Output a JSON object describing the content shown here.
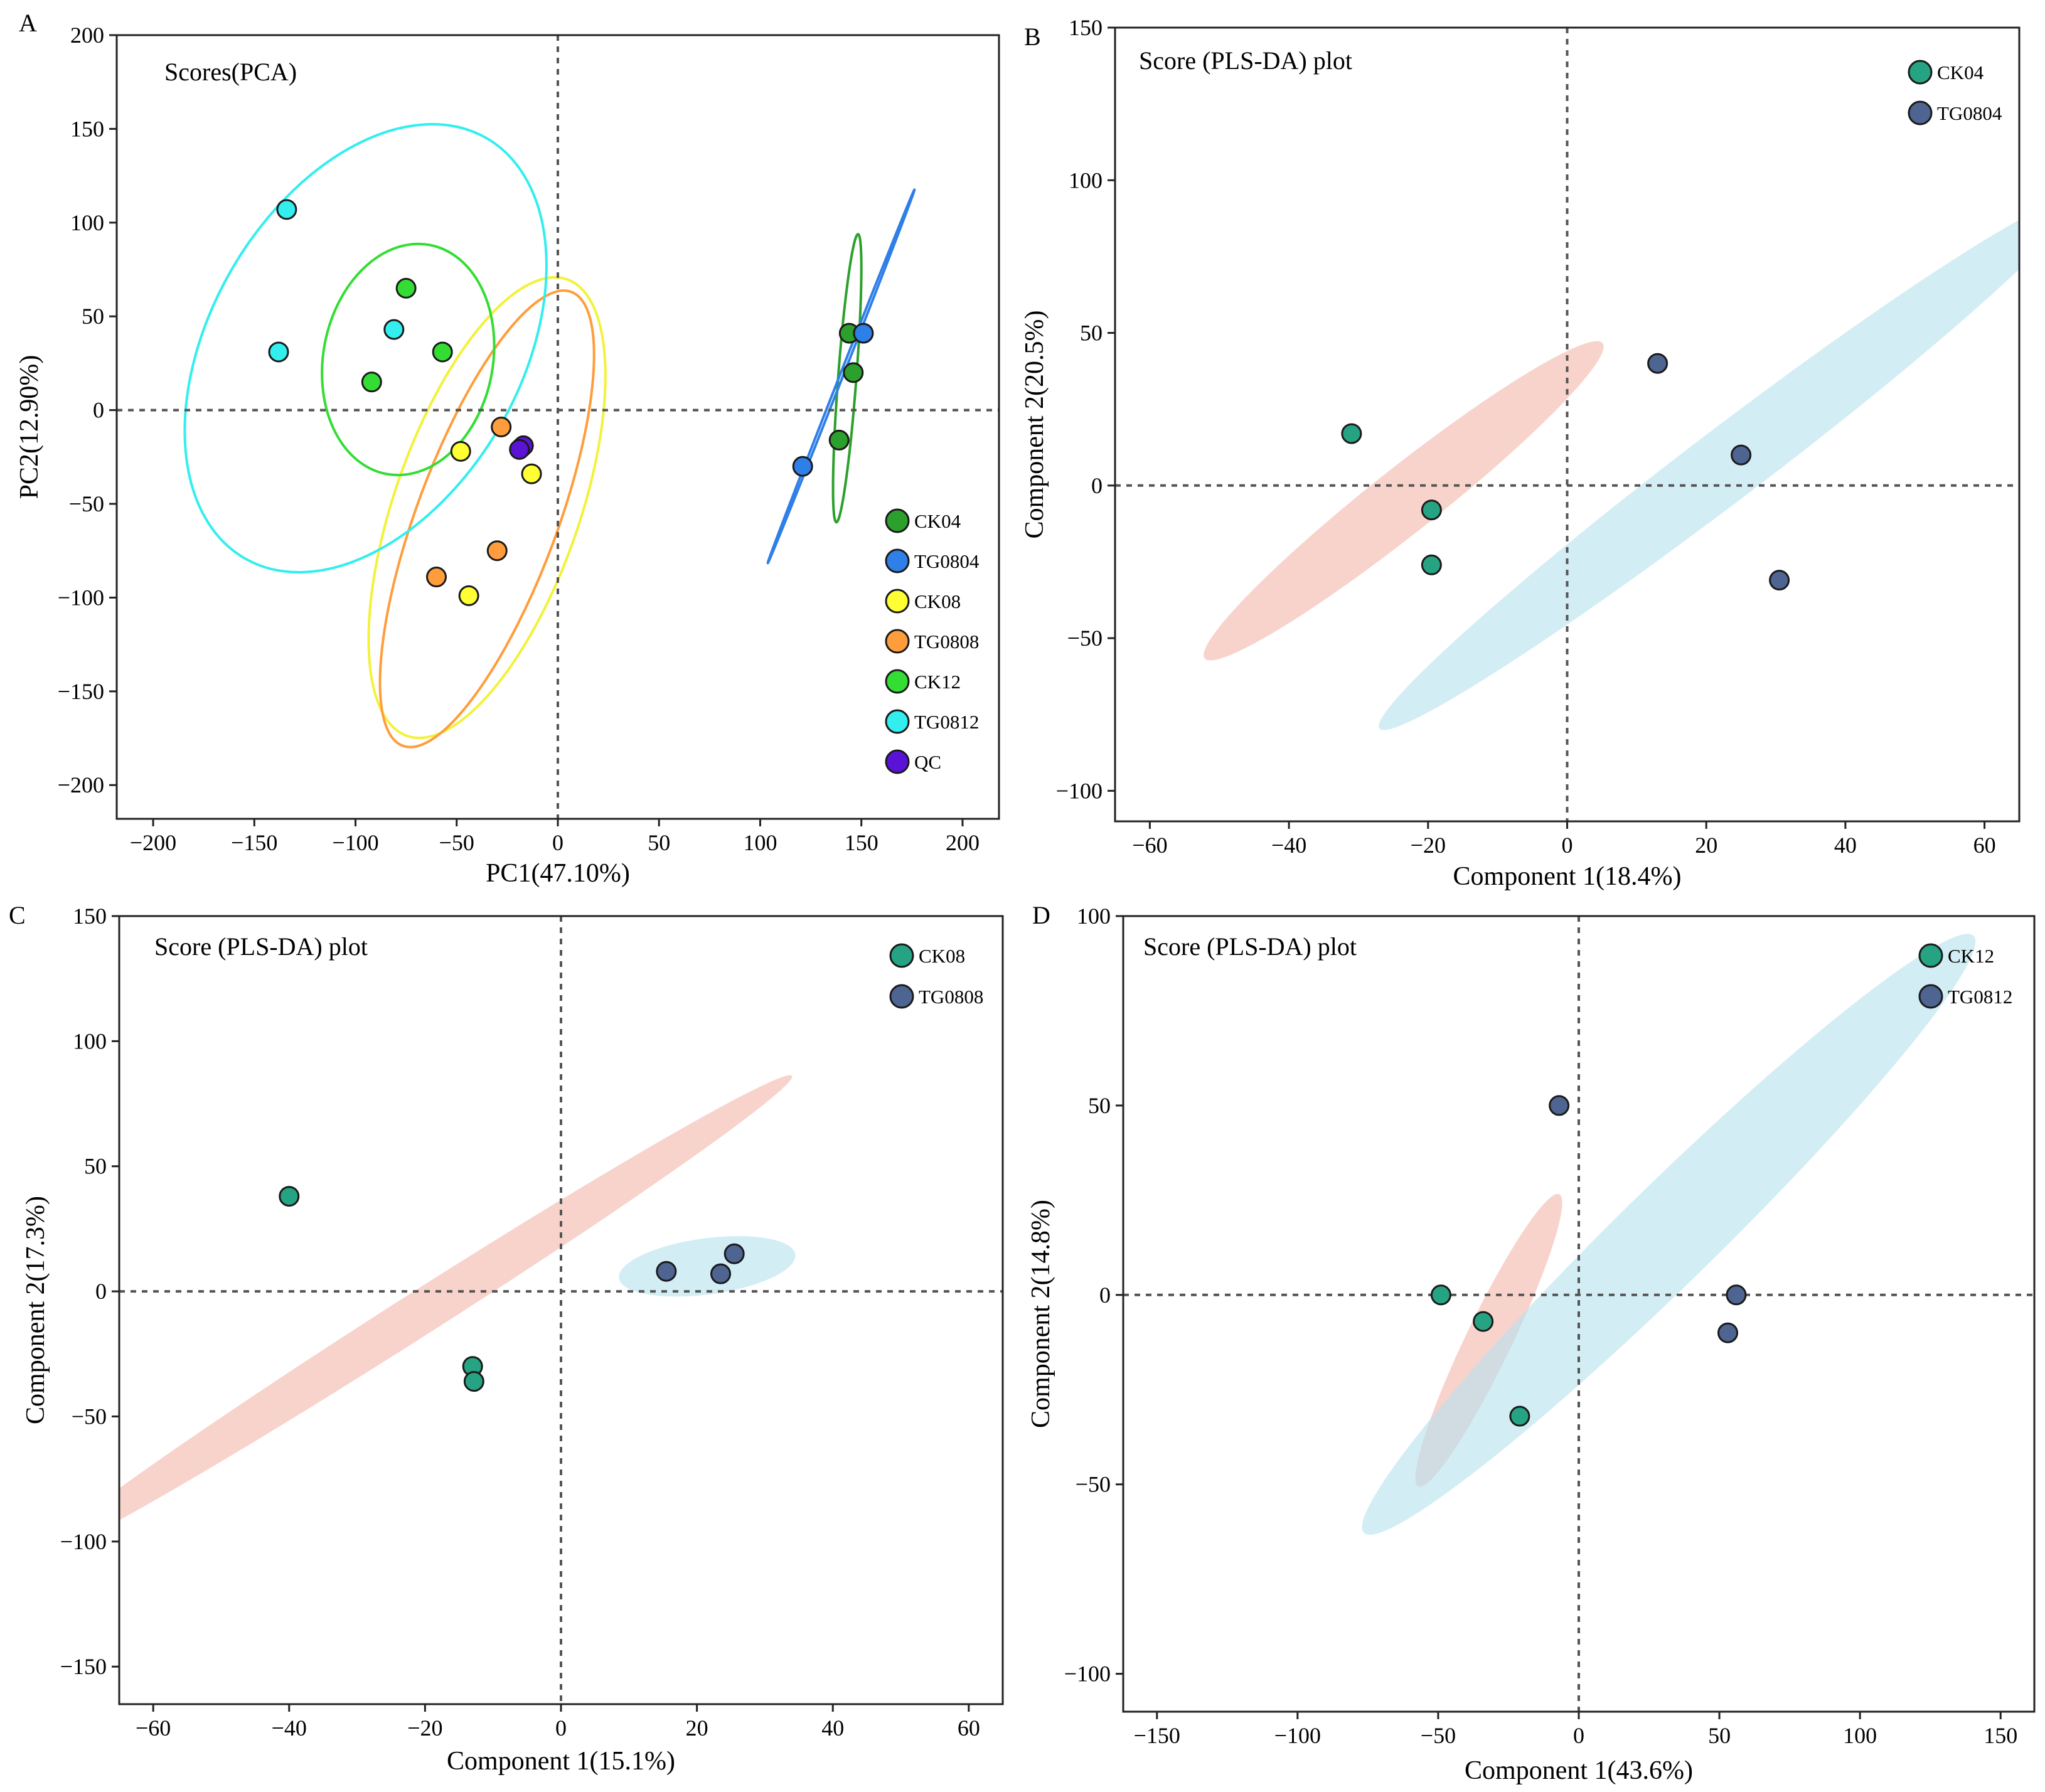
{
  "chart_data": [
    {
      "panel": "A",
      "type": "scatter",
      "title": "Scores(PCA)",
      "xlabel": "PC1(47.10%)",
      "ylabel": "PC2(12.90%)",
      "xlim": [
        -218,
        218
      ],
      "ylim": [
        -218,
        200
      ],
      "xticks": [
        -200,
        -150,
        -100,
        -50,
        0,
        50,
        100,
        150,
        200
      ],
      "yticks": [
        -200,
        -150,
        -100,
        -50,
        0,
        50,
        100,
        150,
        200
      ],
      "xtick_labels": [
        "−200",
        "−150",
        "−100",
        "−50",
        "0",
        "50",
        "100",
        "150",
        "200"
      ],
      "ytick_labels": [
        "−200",
        "−150",
        "−100",
        "−50",
        "0",
        "50",
        "100",
        "150",
        "200"
      ],
      "legend_position": "bottom-right",
      "series": [
        {
          "name": "CK04",
          "color": "#2ca02c",
          "points": [
            [
              144,
              41
            ],
            [
              146,
              20
            ],
            [
              139,
              -16
            ]
          ],
          "ellipse": {
            "center": [
              143,
              17
            ],
            "rx": 77,
            "ry": 4.5,
            "angle": 86,
            "fill": "none"
          }
        },
        {
          "name": "TG0804",
          "color": "#2f7fe8",
          "points": [
            [
              151,
              41
            ],
            [
              121,
              -30
            ]
          ],
          "ellipse": {
            "center": [
              140,
              18
            ],
            "rx": 106,
            "ry": 0.8,
            "angle": 70,
            "fill": "none"
          }
        },
        {
          "name": "CK08",
          "color": "#ffff33",
          "points": [
            [
              -48,
              -22
            ],
            [
              -13,
              -34
            ],
            [
              -44,
              -99
            ]
          ],
          "ellipse": {
            "center": [
              -35,
              -52
            ],
            "rx": 128,
            "ry": 46,
            "angle": 72,
            "fill": "none"
          }
        },
        {
          "name": "TG0808",
          "color": "#ff9d3c",
          "points": [
            [
              -28,
              -9
            ],
            [
              -30,
              -75
            ],
            [
              -60,
              -89
            ]
          ],
          "ellipse": {
            "center": [
              -35,
              -58
            ],
            "rx": 128,
            "ry": 35,
            "angle": 71,
            "fill": "none"
          }
        },
        {
          "name": "CK12",
          "color": "#33dd33",
          "points": [
            [
              -75,
              65
            ],
            [
              -57,
              31
            ],
            [
              -92,
              15
            ]
          ],
          "ellipse": {
            "center": [
              -74,
              27
            ],
            "rx": 62,
            "ry": 42,
            "angle": 80,
            "fill": "none"
          }
        },
        {
          "name": "TG0812",
          "color": "#33eeee",
          "points": [
            [
              -134,
              107
            ],
            [
              -81,
              43
            ],
            [
              -138,
              31
            ]
          ],
          "ellipse": {
            "center": [
              -95,
              33
            ],
            "rx": 127,
            "ry": 78,
            "angle": 62,
            "fill": "none"
          }
        },
        {
          "name": "QC",
          "color": "#5a13d6",
          "points": [
            [
              -18,
              -20
            ],
            [
              -17,
              -19
            ],
            [
              -19,
              -21
            ]
          ]
        }
      ]
    },
    {
      "panel": "B",
      "type": "scatter",
      "title": "Score (PLS-DA) plot",
      "xlabel": "Component 1(18.4%)",
      "ylabel": "Component 2(20.5%)",
      "xlim": [
        -65,
        65
      ],
      "ylim": [
        -110,
        150
      ],
      "xticks": [
        -60,
        -40,
        -20,
        0,
        20,
        40,
        60
      ],
      "yticks": [
        -100,
        -50,
        0,
        50,
        100,
        150
      ],
      "xtick_labels": [
        "−60",
        "−40",
        "−20",
        "0",
        "20",
        "40",
        "60"
      ],
      "ytick_labels": [
        "−100",
        "−50",
        "0",
        "50",
        "100",
        "150"
      ],
      "legend_position": "top-right",
      "series": [
        {
          "name": "CK04",
          "color": "#26a383",
          "points": [
            [
              -31,
              17
            ],
            [
              -19.5,
              -8
            ],
            [
              -19.5,
              -26
            ]
          ],
          "ellipse": {
            "center": [
              -23.5,
              -5
            ],
            "rx": 59,
            "ry": 5.2,
            "angle": 61,
            "fill": "#f4b8ad"
          }
        },
        {
          "name": "TG0804",
          "color": "#4e6491",
          "points": [
            [
              13,
              40
            ],
            [
              25,
              10
            ],
            [
              30.5,
              -31
            ]
          ],
          "ellipse": {
            "center": [
              23,
              7
            ],
            "rx": 100,
            "ry": 5.8,
            "angle": 60,
            "fill": "#b8e2ee"
          }
        }
      ]
    },
    {
      "panel": "C",
      "type": "scatter",
      "title": "Score (PLS-DA) plot",
      "xlabel": "Component 1(15.1%)",
      "ylabel": "Component 2(17.3%)",
      "xlim": [
        -65,
        65
      ],
      "ylim": [
        -165,
        150
      ],
      "xticks": [
        -60,
        -40,
        -20,
        0,
        20,
        40,
        60
      ],
      "yticks": [
        -150,
        -100,
        -50,
        0,
        50,
        100,
        150
      ],
      "xtick_labels": [
        "−60",
        "−40",
        "−20",
        "0",
        "20",
        "40",
        "60"
      ],
      "ytick_labels": [
        "−150",
        "−100",
        "−50",
        "0",
        "50",
        "100",
        "150"
      ],
      "legend_position": "top-right",
      "series": [
        {
          "name": "CK08",
          "color": "#26a383",
          "points": [
            [
              -40,
              38
            ],
            [
              -13,
              -30
            ],
            [
              -12.8,
              -36
            ]
          ],
          "ellipse": {
            "center": [
              -21.5,
              -10
            ],
            "rx": 111,
            "ry": 3.6,
            "angle": 60,
            "fill": "#f4b8ad"
          }
        },
        {
          "name": "TG0808",
          "color": "#4e6491",
          "points": [
            [
              15.5,
              8
            ],
            [
              23.5,
              7
            ],
            [
              25.5,
              15
            ]
          ],
          "ellipse": {
            "center": [
              21.5,
              10
            ],
            "rx": 13.8,
            "ry": 8.5,
            "angle": 20,
            "fill": "#b8e2ee"
          }
        }
      ]
    },
    {
      "panel": "D",
      "type": "scatter",
      "title": "Score (PLS-DA) plot",
      "xlabel": "Component 1(43.6%)",
      "ylabel": "Component 2(14.8%)",
      "xlim": [
        -162,
        162
      ],
      "ylim": [
        -110,
        100
      ],
      "xticks": [
        -150,
        -100,
        -50,
        0,
        50,
        100,
        150
      ],
      "yticks": [
        -100,
        -50,
        0,
        50,
        100
      ],
      "xtick_labels": [
        "−150",
        "−100",
        "−50",
        "0",
        "50",
        "100",
        "150"
      ],
      "ytick_labels": [
        "−100",
        "−50",
        "0",
        "50",
        "100"
      ],
      "legend_position": "top-right",
      "series": [
        {
          "name": "CK12",
          "color": "#26a383",
          "points": [
            [
              -49,
              0
            ],
            [
              -34,
              -7
            ],
            [
              -21,
              -32
            ]
          ],
          "ellipse": {
            "center": [
              -32,
              -12
            ],
            "rx": 46,
            "ry": 7.3,
            "angle": 57,
            "fill": "#f4b8ad"
          }
        },
        {
          "name": "TG0812",
          "color": "#4e6491",
          "points": [
            [
              -7,
              50
            ],
            [
              56,
              0
            ],
            [
              53,
              -10
            ]
          ],
          "ellipse": {
            "center": [
              32,
              16
            ],
            "rx": 134,
            "ry": 14,
            "angle": 36,
            "fill": "#b8e2ee"
          }
        }
      ]
    }
  ]
}
